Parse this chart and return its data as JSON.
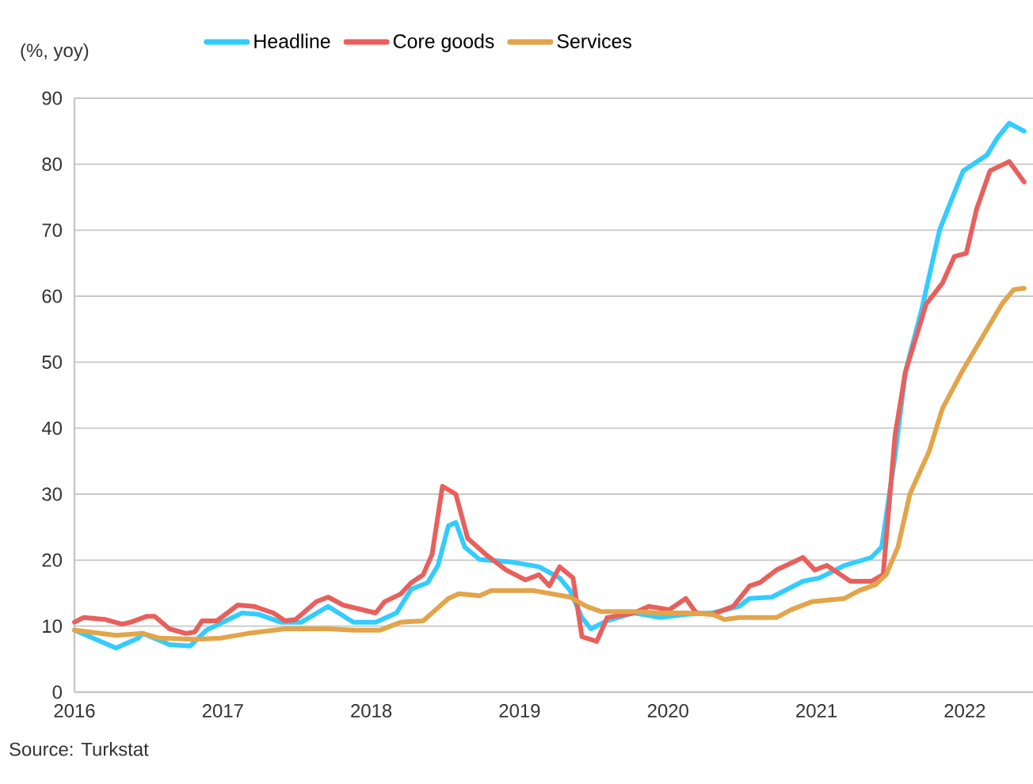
{
  "chart_data": {
    "type": "line",
    "ylabel": "(%, yoy)",
    "xlim": [
      2016,
      2022.46
    ],
    "xticks": [
      2016,
      2017,
      2018,
      2019,
      2020,
      2021,
      2022
    ],
    "ylim": [
      0,
      90
    ],
    "yticks": [
      0,
      10,
      20,
      30,
      40,
      50,
      60,
      70,
      80,
      90
    ],
    "grid": "y",
    "legend": "top",
    "marker": "none",
    "line_style": "solid",
    "annotations": [
      "Source: Turkstat"
    ],
    "series": [
      {
        "name": "Headline",
        "color": "#33ccff",
        "x": [
          2016.0,
          2016.28,
          2016.43,
          2016.46,
          2016.64,
          2016.78,
          2016.89,
          2017.13,
          2017.24,
          2017.39,
          2017.53,
          2017.71,
          2017.88,
          2018.03,
          2018.17,
          2018.27,
          2018.38,
          2018.45,
          2018.52,
          2018.57,
          2018.63,
          2018.73,
          2018.95,
          2019.13,
          2019.27,
          2019.34,
          2019.42,
          2019.48,
          2019.59,
          2019.77,
          2019.95,
          2020.12,
          2020.3,
          2020.48,
          2020.55,
          2020.7,
          2020.91,
          2021.02,
          2021.19,
          2021.37,
          2021.44,
          2021.53,
          2021.6,
          2021.71,
          2021.83,
          2021.9,
          2021.99,
          2022.15,
          2022.22,
          2022.3,
          2022.4
        ],
        "values": [
          9.4,
          6.7,
          8.2,
          8.9,
          7.2,
          7.0,
          9.4,
          12,
          11.8,
          10.6,
          10.6,
          13,
          10.6,
          10.6,
          12,
          15.6,
          16.6,
          19.2,
          25.2,
          25.7,
          22,
          20.1,
          19.7,
          19,
          17.3,
          15.4,
          11.3,
          9.6,
          10.8,
          12,
          11.3,
          11.8,
          12,
          13,
          14.2,
          14.4,
          16.8,
          17.3,
          19.2,
          20.4,
          22,
          35.8,
          48.5,
          58,
          70,
          74,
          79,
          81.4,
          84,
          86.2,
          85
        ]
      },
      {
        "name": "Core goods",
        "color": "#e8605c",
        "x": [
          2016.0,
          2016.06,
          2016.21,
          2016.32,
          2016.38,
          2016.49,
          2016.54,
          2016.64,
          2016.75,
          2016.81,
          2016.86,
          2016.96,
          2017.1,
          2017.21,
          2017.34,
          2017.42,
          2017.49,
          2017.63,
          2017.71,
          2017.81,
          2018.03,
          2018.09,
          2018.2,
          2018.27,
          2018.35,
          2018.41,
          2018.48,
          2018.57,
          2018.65,
          2018.77,
          2018.91,
          2019.04,
          2019.13,
          2019.2,
          2019.27,
          2019.36,
          2019.42,
          2019.52,
          2019.59,
          2019.77,
          2019.87,
          2020.01,
          2020.12,
          2020.19,
          2020.3,
          2020.44,
          2020.55,
          2020.62,
          2020.73,
          2020.91,
          2020.99,
          2021.07,
          2021.23,
          2021.37,
          2021.45,
          2021.53,
          2021.6,
          2021.74,
          2021.85,
          2021.93,
          2022.01,
          2022.08,
          2022.17,
          2022.3,
          2022.4
        ],
        "values": [
          10.6,
          11.3,
          11,
          10.3,
          10.6,
          11.5,
          11.5,
          9.6,
          8.9,
          9.1,
          10.8,
          10.8,
          13.2,
          13,
          12,
          10.8,
          11,
          13.7,
          14.4,
          13.2,
          12,
          13.7,
          14.9,
          16.6,
          17.8,
          20.9,
          31.2,
          30,
          23.3,
          20.9,
          18.5,
          17,
          17.8,
          16.1,
          19,
          17.3,
          8.4,
          7.7,
          11.3,
          12,
          13,
          12.5,
          14.2,
          12,
          11.8,
          13,
          16.1,
          16.6,
          18.5,
          20.4,
          18.5,
          19.2,
          16.8,
          16.8,
          17.8,
          38.9,
          48.5,
          58.8,
          62,
          66,
          66.5,
          73.2,
          79,
          80.4,
          77.3
        ]
      },
      {
        "name": "Services",
        "color": "#e3a44a",
        "x": [
          2016.0,
          2016.28,
          2016.46,
          2016.57,
          2016.81,
          2016.99,
          2017.17,
          2017.42,
          2017.71,
          2017.88,
          2018.06,
          2018.2,
          2018.35,
          2018.41,
          2018.52,
          2018.59,
          2018.73,
          2018.81,
          2018.99,
          2019.09,
          2019.34,
          2019.45,
          2019.55,
          2019.77,
          2019.95,
          2020.12,
          2020.3,
          2020.38,
          2020.48,
          2020.73,
          2020.83,
          2020.97,
          2021.19,
          2021.29,
          2021.4,
          2021.47,
          2021.55,
          2021.63,
          2021.76,
          2021.85,
          2021.98,
          2022.15,
          2022.25,
          2022.33,
          2022.4
        ],
        "values": [
          9.4,
          8.6,
          8.9,
          8.2,
          8.0,
          8.2,
          8.9,
          9.6,
          9.6,
          9.4,
          9.4,
          10.6,
          10.8,
          12,
          14.2,
          14.9,
          14.6,
          15.4,
          15.4,
          15.4,
          14.4,
          13,
          12.2,
          12.2,
          12,
          12,
          11.8,
          11,
          11.3,
          11.3,
          12.5,
          13.7,
          14.2,
          15.4,
          16.3,
          17.8,
          22,
          30,
          36.5,
          43,
          48.5,
          55,
          58.8,
          61,
          61.2
        ]
      }
    ]
  }
}
